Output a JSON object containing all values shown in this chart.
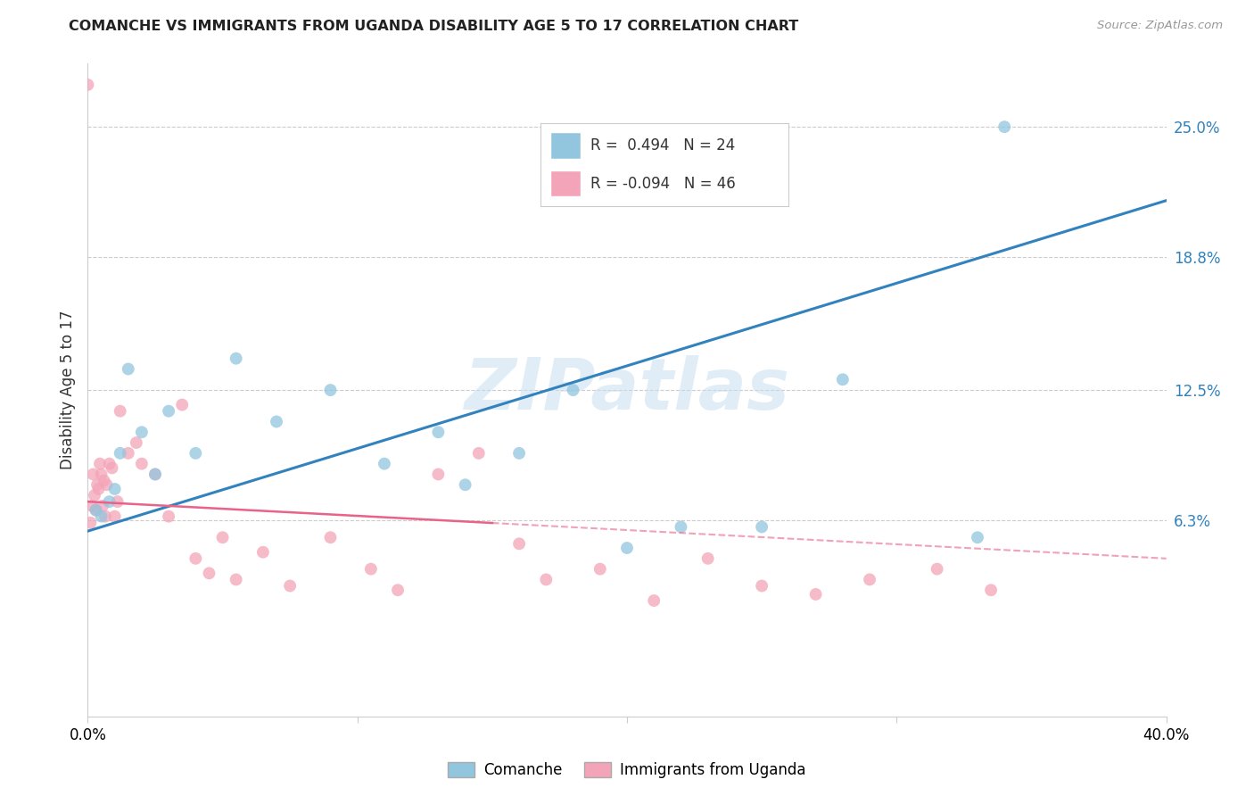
{
  "title": "COMANCHE VS IMMIGRANTS FROM UGANDA DISABILITY AGE 5 TO 17 CORRELATION CHART",
  "source": "Source: ZipAtlas.com",
  "ylabel": "Disability Age 5 to 17",
  "ytick_values": [
    6.3,
    12.5,
    18.8,
    25.0
  ],
  "xlim": [
    0.0,
    40.0
  ],
  "ylim": [
    -3.0,
    28.0
  ],
  "blue_color": "#92c5de",
  "pink_color": "#f4a4b8",
  "blue_line_color": "#3182bd",
  "pink_line_color": "#e8628a",
  "watermark_text": "ZIPatlas",
  "blue_r": 0.494,
  "pink_r": -0.094,
  "blue_n": 24,
  "pink_n": 46,
  "blue_line_x0": 0.0,
  "blue_line_y0": 5.8,
  "blue_line_x1": 40.0,
  "blue_line_y1": 21.5,
  "pink_line_x0": 0.0,
  "pink_line_y0": 7.2,
  "pink_line_x1": 40.0,
  "pink_line_y1": 4.5,
  "pink_solid_end": 15.0,
  "blue_points_x": [
    0.3,
    0.5,
    0.8,
    1.0,
    1.2,
    1.5,
    2.0,
    2.5,
    3.0,
    4.0,
    5.5,
    7.0,
    9.0,
    11.0,
    13.0,
    14.0,
    16.0,
    18.0,
    20.0,
    22.0,
    25.0,
    28.0,
    33.0,
    34.0
  ],
  "blue_points_y": [
    6.8,
    6.5,
    7.2,
    7.8,
    9.5,
    13.5,
    10.5,
    8.5,
    11.5,
    9.5,
    14.0,
    11.0,
    12.5,
    9.0,
    10.5,
    8.0,
    9.5,
    12.5,
    5.0,
    6.0,
    6.0,
    13.0,
    5.5,
    25.0
  ],
  "pink_points_x": [
    0.1,
    0.15,
    0.2,
    0.25,
    0.3,
    0.35,
    0.4,
    0.45,
    0.5,
    0.55,
    0.6,
    0.65,
    0.7,
    0.8,
    0.9,
    1.0,
    1.1,
    1.2,
    1.5,
    1.8,
    2.0,
    2.5,
    3.0,
    3.5,
    4.0,
    4.5,
    5.0,
    5.5,
    6.5,
    7.5,
    9.0,
    10.5,
    11.5,
    13.0,
    14.5,
    16.0,
    17.0,
    19.0,
    21.0,
    23.0,
    25.0,
    27.0,
    29.0,
    31.5,
    33.5,
    0.0
  ],
  "pink_points_y": [
    6.2,
    7.0,
    8.5,
    7.5,
    6.8,
    8.0,
    7.8,
    9.0,
    8.5,
    7.0,
    8.2,
    6.5,
    8.0,
    9.0,
    8.8,
    6.5,
    7.2,
    11.5,
    9.5,
    10.0,
    9.0,
    8.5,
    6.5,
    11.8,
    4.5,
    3.8,
    5.5,
    3.5,
    4.8,
    3.2,
    5.5,
    4.0,
    3.0,
    8.5,
    9.5,
    5.2,
    3.5,
    4.0,
    2.5,
    4.5,
    3.2,
    2.8,
    3.5,
    4.0,
    3.0,
    27.0
  ]
}
